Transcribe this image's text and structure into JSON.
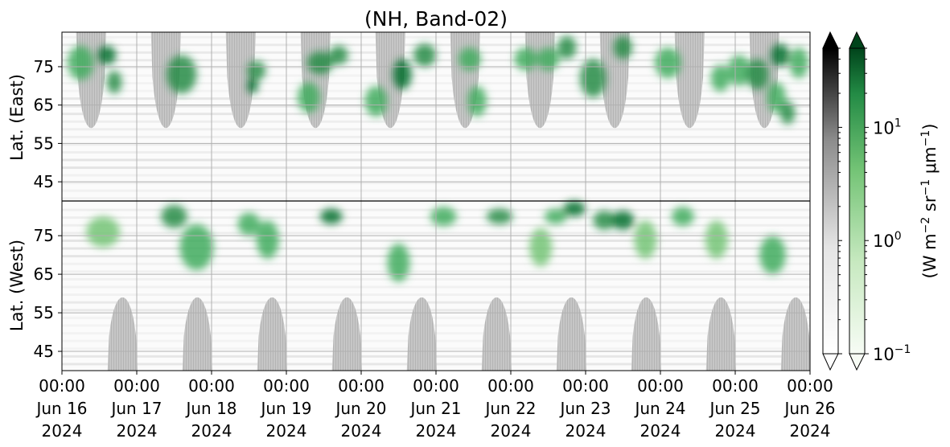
{
  "chart_data": {
    "type": "heatmap",
    "title": "(NH, Band-02)",
    "ylabel_east": "Lat. (East)",
    "ylabel_west": "Lat. (West)",
    "yticks_east": [
      "45",
      "55",
      "65",
      "75"
    ],
    "yticks_west": [
      "75",
      "65",
      "55",
      "45"
    ],
    "ytick_values_east": [
      45,
      55,
      65,
      75
    ],
    "ytick_values_west": [
      75,
      65,
      55,
      45
    ],
    "ylim_east": [
      40,
      84
    ],
    "ylim_west": [
      84,
      40
    ],
    "x_range": [
      "2024-06-16T00:00",
      "2024-06-26T00:00"
    ],
    "xticks": [
      {
        "time": "00:00",
        "date": "Jun 16",
        "year": "2024"
      },
      {
        "time": "00:00",
        "date": "Jun 17",
        "year": "2024"
      },
      {
        "time": "00:00",
        "date": "Jun 18",
        "year": "2024"
      },
      {
        "time": "00:00",
        "date": "Jun 19",
        "year": "2024"
      },
      {
        "time": "00:00",
        "date": "Jun 20",
        "year": "2024"
      },
      {
        "time": "00:00",
        "date": "Jun 21",
        "year": "2024"
      },
      {
        "time": "00:00",
        "date": "Jun 22",
        "year": "2024"
      },
      {
        "time": "00:00",
        "date": "Jun 23",
        "year": "2024"
      },
      {
        "time": "00:00",
        "date": "Jun 24",
        "year": "2024"
      },
      {
        "time": "00:00",
        "date": "Jun 25",
        "year": "2024"
      },
      {
        "time": "00:00",
        "date": "Jun 26",
        "year": "2024"
      }
    ],
    "grid": true,
    "colorbars": [
      {
        "cmap": "gray",
        "scale": "log",
        "range": [
          0.1,
          50
        ],
        "extend": "both"
      },
      {
        "cmap": "greens",
        "scale": "log",
        "range": [
          0.1,
          50
        ],
        "extend": "both"
      }
    ],
    "colorbar_ticks": [
      {
        "base": "10",
        "exp": "1",
        "value": 10
      },
      {
        "base": "10",
        "exp": "0",
        "value": 1
      },
      {
        "base": "10",
        "exp": "−1",
        "value": 0.1
      }
    ],
    "colorbar_label": {
      "pre": "(W m",
      "e1": "−2",
      "mid1": " sr",
      "e2": "−1",
      "mid2": " μm",
      "e3": "−1",
      "post": ")"
    },
    "no_data_lobes_east": [
      {
        "center_day": 0.39,
        "min_lat": 59
      },
      {
        "center_day": 1.39,
        "min_lat": 59
      },
      {
        "center_day": 2.39,
        "min_lat": 59
      },
      {
        "center_day": 3.39,
        "min_lat": 59
      },
      {
        "center_day": 4.39,
        "min_lat": 59
      },
      {
        "center_day": 5.39,
        "min_lat": 59
      },
      {
        "center_day": 6.39,
        "min_lat": 59
      },
      {
        "center_day": 7.39,
        "min_lat": 59
      },
      {
        "center_day": 8.39,
        "min_lat": 59
      },
      {
        "center_day": 9.39,
        "min_lat": 59
      }
    ],
    "no_data_lobes_west": [
      {
        "center_day": 0.81,
        "min_lat": 59
      },
      {
        "center_day": 1.81,
        "min_lat": 59
      },
      {
        "center_day": 2.81,
        "min_lat": 59
      },
      {
        "center_day": 3.81,
        "min_lat": 59
      },
      {
        "center_day": 4.81,
        "min_lat": 59
      },
      {
        "center_day": 5.81,
        "min_lat": 59
      },
      {
        "center_day": 6.81,
        "min_lat": 59
      },
      {
        "center_day": 7.81,
        "min_lat": 59
      },
      {
        "center_day": 8.81,
        "min_lat": 59
      },
      {
        "center_day": 9.81,
        "min_lat": 59
      }
    ],
    "emission_blobs": [
      {
        "day": 0.25,
        "lat": 76,
        "hemi": "east",
        "dur": 0.35,
        "dlat": 9,
        "val": 4
      },
      {
        "day": 0.6,
        "lat": 78,
        "hemi": "east",
        "dur": 0.25,
        "dlat": 5,
        "val": 18
      },
      {
        "day": 0.7,
        "lat": 71,
        "hemi": "east",
        "dur": 0.2,
        "dlat": 6,
        "val": 12
      },
      {
        "day": 0.55,
        "lat": 76,
        "hemi": "west",
        "dur": 0.45,
        "dlat": 8,
        "val": 2
      },
      {
        "day": 1.6,
        "lat": 73,
        "hemi": "east",
        "dur": 0.4,
        "dlat": 10,
        "val": 6
      },
      {
        "day": 1.5,
        "lat": 80,
        "hemi": "west",
        "dur": 0.35,
        "dlat": 6,
        "val": 8
      },
      {
        "day": 1.8,
        "lat": 72,
        "hemi": "west",
        "dur": 0.45,
        "dlat": 12,
        "val": 2.5
      },
      {
        "day": 2.5,
        "lat": 78,
        "hemi": "west",
        "dur": 0.3,
        "dlat": 6,
        "val": 3
      },
      {
        "day": 2.6,
        "lat": 74,
        "hemi": "east",
        "dur": 0.25,
        "dlat": 5,
        "val": 10
      },
      {
        "day": 2.55,
        "lat": 70,
        "hemi": "east",
        "dur": 0.15,
        "dlat": 4,
        "val": 16
      },
      {
        "day": 2.75,
        "lat": 74,
        "hemi": "west",
        "dur": 0.3,
        "dlat": 10,
        "val": 5
      },
      {
        "day": 3.3,
        "lat": 67,
        "hemi": "east",
        "dur": 0.3,
        "dlat": 8,
        "val": 4
      },
      {
        "day": 3.45,
        "lat": 76,
        "hemi": "east",
        "dur": 0.35,
        "dlat": 6,
        "val": 7
      },
      {
        "day": 3.6,
        "lat": 80,
        "hemi": "west",
        "dur": 0.3,
        "dlat": 4,
        "val": 14
      },
      {
        "day": 3.7,
        "lat": 78,
        "hemi": "east",
        "dur": 0.25,
        "dlat": 5,
        "val": 9
      },
      {
        "day": 4.2,
        "lat": 66,
        "hemi": "east",
        "dur": 0.3,
        "dlat": 8,
        "val": 3
      },
      {
        "day": 4.5,
        "lat": 68,
        "hemi": "west",
        "dur": 0.3,
        "dlat": 10,
        "val": 4
      },
      {
        "day": 4.55,
        "lat": 73,
        "hemi": "east",
        "dur": 0.25,
        "dlat": 8,
        "val": 15
      },
      {
        "day": 4.85,
        "lat": 78,
        "hemi": "east",
        "dur": 0.3,
        "dlat": 6,
        "val": 6
      },
      {
        "day": 5.1,
        "lat": 80,
        "hemi": "west",
        "dur": 0.35,
        "dlat": 5,
        "val": 5
      },
      {
        "day": 5.45,
        "lat": 77,
        "hemi": "east",
        "dur": 0.3,
        "dlat": 6,
        "val": 4
      },
      {
        "day": 5.55,
        "lat": 66,
        "hemi": "east",
        "dur": 0.25,
        "dlat": 8,
        "val": 3
      },
      {
        "day": 5.85,
        "lat": 80,
        "hemi": "west",
        "dur": 0.35,
        "dlat": 4,
        "val": 6
      },
      {
        "day": 6.2,
        "lat": 77,
        "hemi": "east",
        "dur": 0.3,
        "dlat": 6,
        "val": 3
      },
      {
        "day": 6.5,
        "lat": 77,
        "hemi": "east",
        "dur": 0.3,
        "dlat": 6,
        "val": 4
      },
      {
        "day": 6.4,
        "lat": 72,
        "hemi": "west",
        "dur": 0.3,
        "dlat": 10,
        "val": 2
      },
      {
        "day": 6.6,
        "lat": 80,
        "hemi": "west",
        "dur": 0.3,
        "dlat": 4,
        "val": 5
      },
      {
        "day": 6.75,
        "lat": 80,
        "hemi": "east",
        "dur": 0.25,
        "dlat": 6,
        "val": 12
      },
      {
        "day": 6.85,
        "lat": 82,
        "hemi": "west",
        "dur": 0.3,
        "dlat": 4,
        "val": 20
      },
      {
        "day": 7.1,
        "lat": 72,
        "hemi": "east",
        "dur": 0.35,
        "dlat": 10,
        "val": 6
      },
      {
        "day": 7.25,
        "lat": 79,
        "hemi": "west",
        "dur": 0.3,
        "dlat": 5,
        "val": 8
      },
      {
        "day": 7.5,
        "lat": 80,
        "hemi": "east",
        "dur": 0.25,
        "dlat": 6,
        "val": 9
      },
      {
        "day": 7.5,
        "lat": 79,
        "hemi": "west",
        "dur": 0.3,
        "dlat": 5,
        "val": 14
      },
      {
        "day": 7.8,
        "lat": 74,
        "hemi": "west",
        "dur": 0.3,
        "dlat": 10,
        "val": 2
      },
      {
        "day": 8.1,
        "lat": 76,
        "hemi": "east",
        "dur": 0.35,
        "dlat": 8,
        "val": 3
      },
      {
        "day": 8.3,
        "lat": 80,
        "hemi": "west",
        "dur": 0.3,
        "dlat": 5,
        "val": 3
      },
      {
        "day": 8.75,
        "lat": 74,
        "hemi": "west",
        "dur": 0.3,
        "dlat": 10,
        "val": 2
      },
      {
        "day": 8.8,
        "lat": 72,
        "hemi": "east",
        "dur": 0.25,
        "dlat": 7,
        "val": 4
      },
      {
        "day": 9.05,
        "lat": 74,
        "hemi": "east",
        "dur": 0.3,
        "dlat": 8,
        "val": 5
      },
      {
        "day": 9.3,
        "lat": 73,
        "hemi": "east",
        "dur": 0.3,
        "dlat": 8,
        "val": 7
      },
      {
        "day": 9.5,
        "lat": 70,
        "hemi": "west",
        "dur": 0.35,
        "dlat": 10,
        "val": 3
      },
      {
        "day": 9.55,
        "lat": 67,
        "hemi": "east",
        "dur": 0.25,
        "dlat": 8,
        "val": 5
      },
      {
        "day": 9.6,
        "lat": 78,
        "hemi": "east",
        "dur": 0.25,
        "dlat": 6,
        "val": 14
      },
      {
        "day": 9.7,
        "lat": 63,
        "hemi": "east",
        "dur": 0.2,
        "dlat": 6,
        "val": 8
      },
      {
        "day": 9.85,
        "lat": 76,
        "hemi": "east",
        "dur": 0.25,
        "dlat": 8,
        "val": 4
      }
    ]
  }
}
